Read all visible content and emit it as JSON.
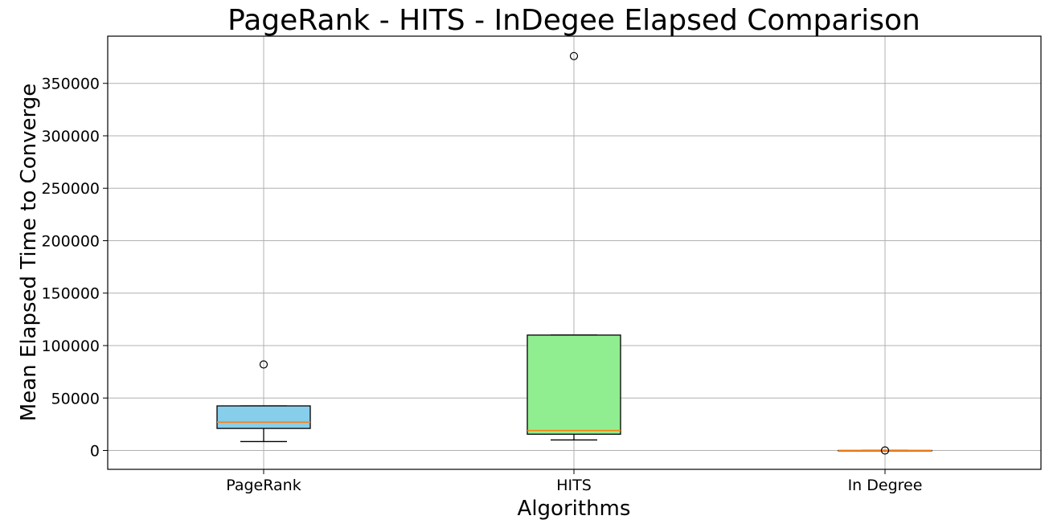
{
  "chart_data": {
    "type": "box",
    "title": "PageRank - HITS - InDegee Elapsed Comparison",
    "xlabel": "Algorithms",
    "ylabel": "Mean Elapsed Time to Converge",
    "ylim": [
      -18000,
      395000
    ],
    "yticks": [
      0,
      50000,
      100000,
      150000,
      200000,
      250000,
      300000,
      350000
    ],
    "ytick_labels": [
      "0",
      "50000",
      "100000",
      "150000",
      "200000",
      "250000",
      "300000",
      "350000"
    ],
    "grid": true,
    "categories": [
      "PageRank",
      "HITS",
      "In Degree"
    ],
    "boxes": [
      {
        "label": "PageRank",
        "whisker_low": 8500,
        "q1": 21000,
        "median": 27000,
        "q3": 42500,
        "whisker_high": 42500,
        "outliers": [
          82000
        ],
        "color": "#87ceeb"
      },
      {
        "label": "HITS",
        "whisker_low": 10000,
        "q1": 15500,
        "median": 19000,
        "q3": 110000,
        "whisker_high": 110000,
        "outliers": [
          376000
        ],
        "color": "#90ee90"
      },
      {
        "label": "In Degree",
        "whisker_low": 0,
        "q1": 0,
        "median": 0,
        "q3": 0,
        "whisker_high": 0,
        "outliers": [
          0
        ],
        "color": "#ffcccb"
      }
    ],
    "median_color": "#ff7f0e"
  }
}
